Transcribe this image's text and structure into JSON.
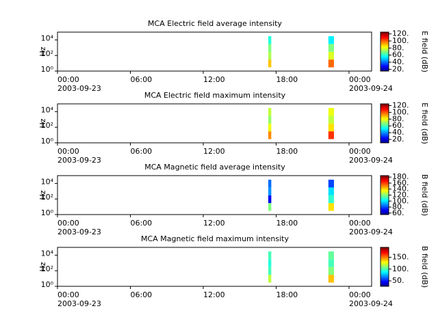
{
  "chart_data": [
    {
      "type": "heatmap",
      "title": "MCA  Electric field average intensity",
      "ylabel": "Hz",
      "colorbar_label": "E field (dB)",
      "xlim": [
        0,
        25.86
      ],
      "xticks": [
        {
          "value": 0,
          "label": "00:00",
          "date": "2003-09-23"
        },
        {
          "value": 6,
          "label": "06:00"
        },
        {
          "value": 12,
          "label": "12:00"
        },
        {
          "value": 18,
          "label": "18:00"
        },
        {
          "value": 24,
          "label": "00:00",
          "date": "2003-09-24"
        }
      ],
      "ylog": true,
      "ylim": [
        1,
        100000
      ],
      "yticks": [
        {
          "value": 1,
          "label": "10⁰"
        },
        {
          "value": 100,
          "label": "10²"
        },
        {
          "value": 10000,
          "label": "10⁴"
        }
      ],
      "clim": [
        15,
        125
      ],
      "cticks": [
        {
          "value": 20,
          "label": "20."
        },
        {
          "value": 40,
          "label": "40."
        },
        {
          "value": 60,
          "label": "60."
        },
        {
          "value": 80,
          "label": "80."
        },
        {
          "value": 100,
          "label": "100."
        },
        {
          "value": 120,
          "label": "120."
        }
      ],
      "time_bins": [
        [
          17.35,
          17.6
        ],
        [
          22.3,
          22.76
        ]
      ],
      "freq_bins": [
        3,
        30,
        300,
        3000,
        30000
      ],
      "z": [
        [
          90,
          75,
          70,
          60
        ],
        [
          100,
          80,
          70,
          55
        ]
      ]
    },
    {
      "type": "heatmap",
      "title": "MCA  Electric field maximum intensity",
      "ylabel": "Hz",
      "colorbar_label": "E field (dB)",
      "xlim": [
        0,
        25.86
      ],
      "xticks": [
        {
          "value": 0,
          "label": "00:00",
          "date": "2003-09-23"
        },
        {
          "value": 6,
          "label": "06:00"
        },
        {
          "value": 12,
          "label": "12:00"
        },
        {
          "value": 18,
          "label": "18:00"
        },
        {
          "value": 24,
          "label": "00:00",
          "date": "2003-09-24"
        }
      ],
      "ylog": true,
      "ylim": [
        1,
        100000
      ],
      "yticks": [
        {
          "value": 1,
          "label": "10⁰"
        },
        {
          "value": 100,
          "label": "10²"
        },
        {
          "value": 10000,
          "label": "10⁴"
        }
      ],
      "clim": [
        10,
        125
      ],
      "cticks": [
        {
          "value": 20,
          "label": "20."
        },
        {
          "value": 40,
          "label": "40."
        },
        {
          "value": 60,
          "label": "60."
        },
        {
          "value": 80,
          "label": "80."
        },
        {
          "value": 100,
          "label": "100."
        },
        {
          "value": 120,
          "label": "120."
        }
      ],
      "time_bins": [
        [
          17.35,
          17.6
        ],
        [
          22.3,
          22.76
        ]
      ],
      "freq_bins": [
        3,
        30,
        300,
        3000,
        30000
      ],
      "z": [
        [
          95,
          80,
          70,
          75
        ],
        [
          105,
          85,
          75,
          80
        ]
      ]
    },
    {
      "type": "heatmap",
      "title": "MCA  Magnetic field average intensity",
      "ylabel": "Hz",
      "colorbar_label": "B field (dB)",
      "xlim": [
        0,
        25.86
      ],
      "xticks": [
        {
          "value": 0,
          "label": "00:00",
          "date": "2003-09-23"
        },
        {
          "value": 6,
          "label": "06:00"
        },
        {
          "value": 12,
          "label": "12:00"
        },
        {
          "value": 18,
          "label": "18:00"
        },
        {
          "value": 24,
          "label": "00:00",
          "date": "2003-09-24"
        }
      ],
      "ylog": true,
      "ylim": [
        1,
        100000
      ],
      "yticks": [
        {
          "value": 1,
          "label": "10⁰"
        },
        {
          "value": 100,
          "label": "10²"
        },
        {
          "value": 10000,
          "label": "10⁴"
        }
      ],
      "clim": [
        55,
        185
      ],
      "cticks": [
        {
          "value": 60,
          "label": "60."
        },
        {
          "value": 80,
          "label": "80."
        },
        {
          "value": 100,
          "label": "100."
        },
        {
          "value": 120,
          "label": "120."
        },
        {
          "value": 140,
          "label": "140."
        },
        {
          "value": 160,
          "label": "160."
        },
        {
          "value": 180,
          "label": "180."
        }
      ],
      "time_bins": [
        [
          17.35,
          17.6
        ],
        [
          22.3,
          22.76
        ]
      ],
      "freq_bins": [
        3,
        30,
        300,
        3000,
        30000
      ],
      "z": [
        [
          120,
          70,
          90,
          85
        ],
        [
          140,
          110,
          100,
          80
        ]
      ]
    },
    {
      "type": "heatmap",
      "title": "MCA  Magnetic field maximum intensity",
      "ylabel": "Hz",
      "colorbar_label": "B field (dB)",
      "xlim": [
        0,
        25.86
      ],
      "xticks": [
        {
          "value": 0,
          "label": "00:00",
          "date": "2003-09-23"
        },
        {
          "value": 6,
          "label": "06:00"
        },
        {
          "value": 12,
          "label": "12:00"
        },
        {
          "value": 18,
          "label": "18:00"
        },
        {
          "value": 24,
          "label": "00:00",
          "date": "2003-09-24"
        }
      ],
      "ylog": true,
      "ylim": [
        1,
        100000
      ],
      "yticks": [
        {
          "value": 1,
          "label": "10⁰"
        },
        {
          "value": 100,
          "label": "10²"
        },
        {
          "value": 10000,
          "label": "10⁴"
        }
      ],
      "clim": [
        27,
        192
      ],
      "cticks": [
        {
          "value": 50,
          "label": "50."
        },
        {
          "value": 100,
          "label": "100."
        },
        {
          "value": 150,
          "label": "150."
        }
      ],
      "time_bins": [
        [
          17.35,
          17.6
        ],
        [
          22.3,
          22.76
        ]
      ],
      "freq_bins": [
        3,
        30,
        300,
        3000,
        30000
      ],
      "z": [
        [
          120,
          100,
          95,
          100
        ],
        [
          140,
          110,
          100,
          105
        ]
      ]
    }
  ]
}
